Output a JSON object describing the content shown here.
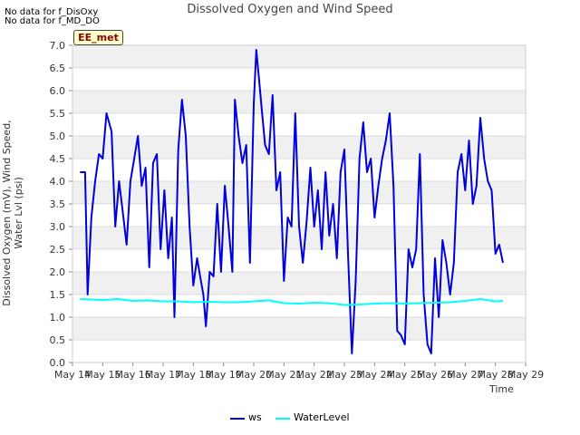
{
  "notes": [
    "No data for f_DisOxy",
    "No data for f_MD_DO"
  ],
  "badge": "EE_met",
  "chart_data": {
    "type": "line",
    "title": "Dissolved Oxygen and Wind Speed",
    "xlabel": "Time",
    "ylabel": "Dissolved Oxygen (mV), Wind Speed, Water Lvl (psi)",
    "ylim": [
      0,
      7
    ],
    "xlim": [
      "2022-05-14",
      "2022-05-29"
    ],
    "y_ticks": [
      "0.0",
      "0.5",
      "1.0",
      "1.5",
      "2.0",
      "2.5",
      "3.0",
      "3.5",
      "4.0",
      "4.5",
      "5.0",
      "5.5",
      "6.0",
      "6.5",
      "7.0"
    ],
    "x_ticks": [
      "May 14",
      "May 15",
      "May 16",
      "May 17",
      "May 18",
      "May 19",
      "May 20",
      "May 21",
      "May 22",
      "May 23",
      "May 24",
      "May 25",
      "May 26",
      "May 27",
      "May 28",
      "May 29"
    ],
    "grid": true,
    "legend_position": "bottom-center",
    "series": [
      {
        "name": "ws",
        "color": "#0000dd",
        "x": [
          "2022-05-14T06:00",
          "2022-05-14T10:00",
          "2022-05-14T12:00",
          "2022-05-14T15:00",
          "2022-05-14T18:00",
          "2022-05-14T21:00",
          "2022-05-15T00:00",
          "2022-05-15T03:00",
          "2022-05-15T07:00",
          "2022-05-15T10:00",
          "2022-05-15T13:00",
          "2022-05-15T16:00",
          "2022-05-15T19:00",
          "2022-05-15T22:00",
          "2022-05-16T01:00",
          "2022-05-16T04:00",
          "2022-05-16T07:00",
          "2022-05-16T10:00",
          "2022-05-16T13:00",
          "2022-05-16T16:00",
          "2022-05-16T19:00",
          "2022-05-16T22:00",
          "2022-05-17T01:00",
          "2022-05-17T04:00",
          "2022-05-17T07:00",
          "2022-05-17T09:00",
          "2022-05-17T12:00",
          "2022-05-17T15:00",
          "2022-05-17T18:00",
          "2022-05-17T21:00",
          "2022-05-18T00:00",
          "2022-05-18T03:00",
          "2022-05-18T06:00",
          "2022-05-18T08:00",
          "2022-05-18T10:00",
          "2022-05-18T13:00",
          "2022-05-18T16:00",
          "2022-05-18T19:00",
          "2022-05-18T22:00",
          "2022-05-19T01:00",
          "2022-05-19T04:00",
          "2022-05-19T07:00",
          "2022-05-19T09:00",
          "2022-05-19T12:00",
          "2022-05-19T15:00",
          "2022-05-19T18:00",
          "2022-05-19T21:00",
          "2022-05-20T00:00",
          "2022-05-20T02:00",
          "2022-05-20T04:00",
          "2022-05-20T07:00",
          "2022-05-20T09:00",
          "2022-05-20T12:00",
          "2022-05-20T15:00",
          "2022-05-20T18:00",
          "2022-05-20T21:00",
          "2022-05-21T00:00",
          "2022-05-21T03:00",
          "2022-05-21T06:00",
          "2022-05-21T09:00",
          "2022-05-21T12:00",
          "2022-05-21T15:00",
          "2022-05-21T18:00",
          "2022-05-21T21:00",
          "2022-05-22T00:00",
          "2022-05-22T03:00",
          "2022-05-22T06:00",
          "2022-05-22T09:00",
          "2022-05-22T12:00",
          "2022-05-22T15:00",
          "2022-05-22T18:00",
          "2022-05-22T21:00",
          "2022-05-23T00:00",
          "2022-05-23T03:00",
          "2022-05-23T06:00",
          "2022-05-23T09:00",
          "2022-05-23T12:00",
          "2022-05-23T15:00",
          "2022-05-23T18:00",
          "2022-05-23T21:00",
          "2022-05-24T00:00",
          "2022-05-24T03:00",
          "2022-05-24T06:00",
          "2022-05-24T09:00",
          "2022-05-24T12:00",
          "2022-05-24T15:00",
          "2022-05-24T18:00",
          "2022-05-24T21:00",
          "2022-05-25T00:00",
          "2022-05-25T03:00",
          "2022-05-25T06:00",
          "2022-05-25T09:00",
          "2022-05-25T12:00",
          "2022-05-25T15:00",
          "2022-05-25T18:00",
          "2022-05-25T21:00",
          "2022-05-26T00:00",
          "2022-05-26T03:00",
          "2022-05-26T06:00",
          "2022-05-26T09:00",
          "2022-05-26T12:00",
          "2022-05-26T15:00",
          "2022-05-26T18:00",
          "2022-05-26T21:00",
          "2022-05-27T00:00",
          "2022-05-27T03:00",
          "2022-05-27T06:00",
          "2022-05-27T09:00",
          "2022-05-27T12:00",
          "2022-05-27T15:00",
          "2022-05-27T18:00",
          "2022-05-27T21:00",
          "2022-05-28T00:00",
          "2022-05-28T03:00",
          "2022-05-28T06:00"
        ],
        "values": [
          4.2,
          4.2,
          1.5,
          3.2,
          4.0,
          4.6,
          4.5,
          5.5,
          5.1,
          3.0,
          4.0,
          3.3,
          2.6,
          4.0,
          4.5,
          5.0,
          3.9,
          4.3,
          2.1,
          4.4,
          4.6,
          2.5,
          3.8,
          2.3,
          3.2,
          1.0,
          4.7,
          5.8,
          5.0,
          3.0,
          1.7,
          2.3,
          1.8,
          1.5,
          0.8,
          2.0,
          1.9,
          3.5,
          2.0,
          3.9,
          3.0,
          2.0,
          5.8,
          5.0,
          4.4,
          4.8,
          2.2,
          5.7,
          6.9,
          6.3,
          5.4,
          4.8,
          4.6,
          5.9,
          3.8,
          4.2,
          1.8,
          3.2,
          3.0,
          5.5,
          3.0,
          2.2,
          3.1,
          4.3,
          3.0,
          3.8,
          2.5,
          4.2,
          2.8,
          3.5,
          2.3,
          4.2,
          4.7,
          2.3,
          0.2,
          1.8,
          4.5,
          5.3,
          4.2,
          4.5,
          3.2,
          3.9,
          4.5,
          4.9,
          5.5,
          3.9,
          0.7,
          0.6,
          0.4,
          2.5,
          2.1,
          2.5,
          4.6,
          1.5,
          0.4,
          0.2,
          2.3,
          1.0,
          2.7,
          2.2,
          1.5,
          2.2,
          4.2,
          4.6,
          3.8,
          4.9,
          3.5,
          3.9,
          5.4,
          4.5,
          4.0,
          3.8,
          2.4,
          2.6,
          2.2
        ],
        "values_note": ""
      },
      {
        "name": "WaterLevel",
        "color": "#00ffff",
        "x": [
          "2022-05-14T06:00",
          "2022-05-15T00:00",
          "2022-05-15T12:00",
          "2022-05-16T00:00",
          "2022-05-16T12:00",
          "2022-05-17T00:00",
          "2022-05-17T12:00",
          "2022-05-18T00:00",
          "2022-05-18T12:00",
          "2022-05-19T00:00",
          "2022-05-19T12:00",
          "2022-05-20T00:00",
          "2022-05-20T12:00",
          "2022-05-21T00:00",
          "2022-05-21T12:00",
          "2022-05-22T00:00",
          "2022-05-22T12:00",
          "2022-05-23T00:00",
          "2022-05-23T12:00",
          "2022-05-24T00:00",
          "2022-05-24T12:00",
          "2022-05-25T00:00",
          "2022-05-25T12:00",
          "2022-05-26T00:00",
          "2022-05-26T12:00",
          "2022-05-27T00:00",
          "2022-05-27T12:00",
          "2022-05-28T00:00",
          "2022-05-28T06:00"
        ],
        "values": [
          1.4,
          1.38,
          1.4,
          1.36,
          1.37,
          1.35,
          1.35,
          1.33,
          1.34,
          1.33,
          1.33,
          1.35,
          1.37,
          1.31,
          1.3,
          1.32,
          1.31,
          1.27,
          1.28,
          1.3,
          1.31,
          1.3,
          1.31,
          1.32,
          1.33,
          1.36,
          1.4,
          1.35,
          1.36
        ]
      }
    ]
  }
}
